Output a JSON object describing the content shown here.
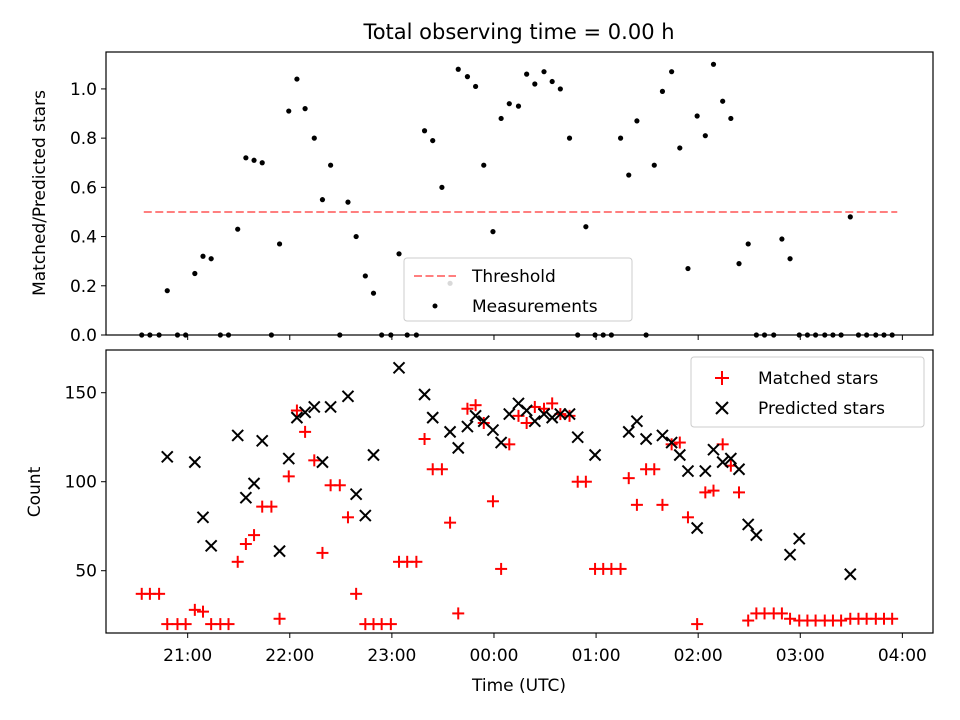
{
  "title": "Total observing time = 0.00 h",
  "colors": {
    "threshold": "#ff7f7f",
    "measurement": "#000000",
    "matched": "#ff0000",
    "predicted": "#000000"
  },
  "chart_data": [
    {
      "type": "scatter",
      "ylabel": "Matched/Predicted stars",
      "xlim": [
        20.2,
        28.3
      ],
      "ylim": [
        0,
        1.15
      ],
      "yticks": [
        0.0,
        0.2,
        0.4,
        0.6,
        0.8,
        1.0
      ],
      "ytick_labels": [
        "0.0",
        "0.2",
        "0.4",
        "0.6",
        "0.8",
        "1.0"
      ],
      "threshold": {
        "name": "Threshold",
        "value": 0.5,
        "x_range": [
          20.57,
          27.95
        ]
      },
      "legend": {
        "position": "lower-center",
        "entries": [
          "Threshold",
          "Measurements"
        ]
      },
      "series": [
        {
          "name": "Measurements",
          "x": [
            20.55,
            20.63,
            20.72,
            20.8,
            20.9,
            20.98,
            21.07,
            21.15,
            21.23,
            21.32,
            21.4,
            21.49,
            21.57,
            21.65,
            21.73,
            21.82,
            21.9,
            21.99,
            22.07,
            22.15,
            22.24,
            22.32,
            22.4,
            22.49,
            22.57,
            22.65,
            22.74,
            22.82,
            22.9,
            22.99,
            23.07,
            23.15,
            23.24,
            23.32,
            23.4,
            23.49,
            23.57,
            23.65,
            23.74,
            23.82,
            23.9,
            23.99,
            24.07,
            24.15,
            24.24,
            24.32,
            24.4,
            24.49,
            24.57,
            24.65,
            24.74,
            24.82,
            24.9,
            24.99,
            25.07,
            25.15,
            25.24,
            25.32,
            25.4,
            25.49,
            25.57,
            25.65,
            25.74,
            25.82,
            25.9,
            25.99,
            26.07,
            26.15,
            26.24,
            26.32,
            26.4,
            26.49,
            26.57,
            26.65,
            26.74,
            26.82,
            26.9,
            26.99,
            27.07,
            27.15,
            27.24,
            27.32,
            27.4,
            27.49,
            27.57,
            27.65,
            27.74,
            27.82,
            27.9
          ],
          "y": [
            0,
            0,
            0,
            0.18,
            0,
            0,
            0.25,
            0.32,
            0.31,
            0,
            0,
            0.43,
            0.72,
            0.71,
            0.7,
            0,
            0.37,
            0.91,
            1.04,
            0.92,
            0.8,
            0.55,
            0.69,
            0,
            0.54,
            0.4,
            0.24,
            0.17,
            0,
            0,
            0.33,
            0,
            0,
            0.83,
            0.79,
            0.6,
            0.21,
            1.08,
            1.05,
            1.01,
            0.69,
            0.42,
            0.88,
            0.94,
            0.93,
            1.06,
            1.02,
            1.07,
            1.03,
            1.0,
            0.8,
            0,
            0.44,
            0,
            0,
            0,
            0.8,
            0.65,
            0.87,
            0,
            0.69,
            0.99,
            1.07,
            0.76,
            0.27,
            0.89,
            0.81,
            1.1,
            0.95,
            0.88,
            0.29,
            0.37,
            0,
            0,
            0,
            0.39,
            0.31,
            0,
            0,
            0,
            0,
            0,
            0,
            0.48,
            0,
            0,
            0,
            0,
            0
          ]
        }
      ]
    },
    {
      "type": "scatter",
      "ylabel": "Count",
      "xlabel": "Time (UTC)",
      "xlim": [
        20.2,
        28.3
      ],
      "ylim": [
        15,
        174
      ],
      "yticks": [
        50,
        100,
        150
      ],
      "ytick_labels": [
        "50",
        "100",
        "150"
      ],
      "xticks": [
        21,
        22,
        23,
        24,
        25,
        26,
        27,
        28
      ],
      "xtick_labels": [
        "21:00",
        "22:00",
        "23:00",
        "00:00",
        "01:00",
        "02:00",
        "03:00",
        "04:00"
      ],
      "legend": {
        "position": "top-right",
        "entries": [
          "Matched stars",
          "Predicted stars"
        ]
      },
      "series": [
        {
          "name": "Matched stars",
          "marker": "plus",
          "x": [
            20.55,
            20.63,
            20.72,
            20.8,
            20.9,
            20.98,
            21.07,
            21.15,
            21.23,
            21.32,
            21.4,
            21.49,
            21.57,
            21.65,
            21.73,
            21.82,
            21.9,
            21.99,
            22.07,
            22.15,
            22.24,
            22.32,
            22.4,
            22.49,
            22.57,
            22.65,
            22.74,
            22.82,
            22.9,
            22.99,
            23.07,
            23.15,
            23.24,
            23.32,
            23.4,
            23.49,
            23.57,
            23.65,
            23.74,
            23.82,
            23.9,
            23.99,
            24.07,
            24.15,
            24.24,
            24.32,
            24.4,
            24.49,
            24.57,
            24.65,
            24.74,
            24.82,
            24.9,
            24.99,
            25.07,
            25.15,
            25.24,
            25.32,
            25.4,
            25.49,
            25.57,
            25.65,
            25.74,
            25.82,
            25.9,
            25.99,
            26.07,
            26.15,
            26.24,
            26.32,
            26.4,
            26.49,
            26.57,
            26.65,
            26.74,
            26.82,
            26.9,
            26.99,
            27.07,
            27.15,
            27.24,
            27.32,
            27.4,
            27.49,
            27.57,
            27.65,
            27.74,
            27.82,
            27.9
          ],
          "y": [
            37,
            37,
            37,
            20,
            20,
            20,
            28,
            27,
            20,
            20,
            20,
            55,
            65,
            70,
            86,
            86,
            23,
            103,
            140,
            128,
            112,
            60,
            98,
            98,
            80,
            37,
            20,
            20,
            20,
            20,
            55,
            55,
            55,
            124,
            107,
            107,
            77,
            26,
            141,
            143,
            133,
            89,
            51,
            121,
            137,
            133,
            142,
            141,
            144,
            138,
            137,
            100,
            100,
            51,
            51,
            51,
            51,
            102,
            87,
            107,
            107,
            87,
            121,
            122,
            80,
            20,
            94,
            95,
            121,
            109,
            94,
            22,
            26,
            26,
            26,
            26,
            23,
            22,
            22,
            22,
            22,
            22,
            22,
            23,
            23,
            23,
            23,
            23,
            23
          ]
        },
        {
          "name": "Predicted stars",
          "marker": "x",
          "x": [
            20.8,
            21.07,
            21.15,
            21.23,
            21.49,
            21.57,
            21.65,
            21.73,
            21.9,
            21.99,
            22.07,
            22.15,
            22.24,
            22.32,
            22.4,
            22.57,
            22.65,
            22.74,
            22.82,
            23.07,
            23.32,
            23.4,
            23.57,
            23.65,
            23.74,
            23.82,
            23.9,
            23.99,
            24.07,
            24.15,
            24.24,
            24.32,
            24.4,
            24.49,
            24.57,
            24.65,
            24.74,
            24.82,
            24.99,
            25.32,
            25.4,
            25.49,
            25.65,
            25.74,
            25.82,
            25.9,
            25.99,
            26.07,
            26.15,
            26.24,
            26.32,
            26.4,
            26.49,
            26.57,
            26.9,
            26.99,
            27.49
          ],
          "y": [
            114,
            111,
            80,
            64,
            126,
            91,
            99,
            123,
            61,
            113,
            136,
            139,
            142,
            111,
            142,
            148,
            93,
            81,
            115,
            164,
            149,
            136,
            128,
            119,
            131,
            137,
            134,
            129,
            122,
            138,
            144,
            140,
            134,
            138,
            136,
            138,
            138,
            125,
            115,
            128,
            134,
            124,
            126,
            122,
            115,
            106,
            74,
            106,
            118,
            111,
            113,
            107,
            76,
            70,
            59,
            68,
            48
          ]
        }
      ]
    }
  ]
}
